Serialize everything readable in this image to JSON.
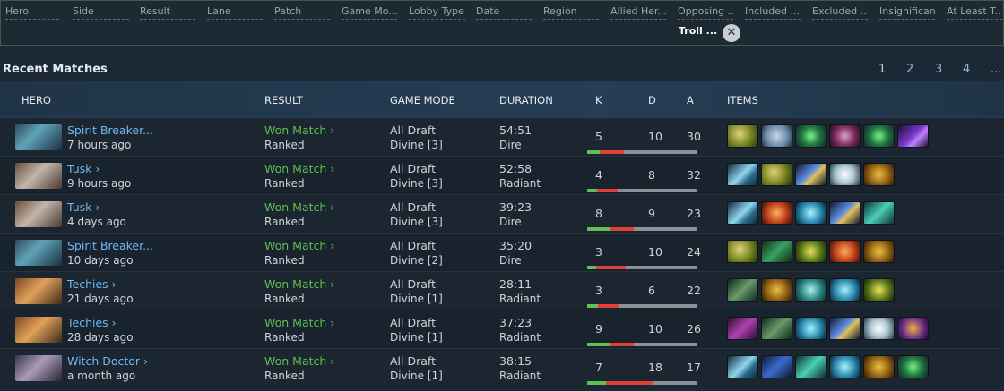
{
  "filters": [
    "Hero",
    "Side",
    "Result",
    "Lane",
    "Patch",
    "Game Mo...",
    "Lobby Type",
    "Date",
    "Region",
    "Allied Her...",
    "Opposing ...",
    "Included ...",
    "Excluded ...",
    "Insignificant",
    "At Least T..."
  ],
  "active_filter_chip": "Troll ...",
  "section_title": "Recent Matches",
  "pagination": [
    "1",
    "2",
    "3",
    "4",
    "..."
  ],
  "columns": [
    "HERO",
    "RESULT",
    "GAME MODE",
    "DURATION",
    "K",
    "D",
    "A",
    "ITEMS"
  ],
  "matches": [
    {
      "hero": "Spirit Breaker...",
      "time": "7 hours ago",
      "result": "Won Match ›",
      "lobby": "Ranked",
      "mode": "All Draft",
      "rank": "Divine [3]",
      "duration": "54:51",
      "side": "Dire",
      "k": "5",
      "d": "10",
      "a": "30"
    },
    {
      "hero": "Tusk ›",
      "time": "9 hours ago",
      "result": "Won Match ›",
      "lobby": "Ranked",
      "mode": "All Draft",
      "rank": "Divine [3]",
      "duration": "52:58",
      "side": "Radiant",
      "k": "4",
      "d": "8",
      "a": "32"
    },
    {
      "hero": "Tusk ›",
      "time": "4 days ago",
      "result": "Won Match ›",
      "lobby": "Ranked",
      "mode": "All Draft",
      "rank": "Divine [3]",
      "duration": "39:23",
      "side": "Dire",
      "k": "8",
      "d": "9",
      "a": "23"
    },
    {
      "hero": "Spirit Breaker...",
      "time": "10 days ago",
      "result": "Won Match ›",
      "lobby": "Ranked",
      "mode": "All Draft",
      "rank": "Divine [2]",
      "duration": "35:20",
      "side": "Dire",
      "k": "3",
      "d": "10",
      "a": "24"
    },
    {
      "hero": "Techies ›",
      "time": "21 days ago",
      "result": "Won Match ›",
      "lobby": "Ranked",
      "mode": "All Draft",
      "rank": "Divine [1]",
      "duration": "28:11",
      "side": "Radiant",
      "k": "3",
      "d": "6",
      "a": "22"
    },
    {
      "hero": "Techies ›",
      "time": "28 days ago",
      "result": "Won Match ›",
      "lobby": "Ranked",
      "mode": "All Draft",
      "rank": "Divine [1]",
      "duration": "37:23",
      "side": "Radiant",
      "k": "9",
      "d": "10",
      "a": "26"
    },
    {
      "hero": "Witch Doctor ›",
      "time": "a month ago",
      "result": "Won Match ›",
      "lobby": "Ranked",
      "mode": "All Draft",
      "rank": "Divine [1]",
      "duration": "38:15",
      "side": "Radiant",
      "k": "7",
      "d": "18",
      "a": "17"
    }
  ],
  "colors": {
    "win": "#5fbf52",
    "link": "#6fb8f2",
    "kill_bar": "#5fbf52",
    "death_bar": "#e0403a"
  }
}
